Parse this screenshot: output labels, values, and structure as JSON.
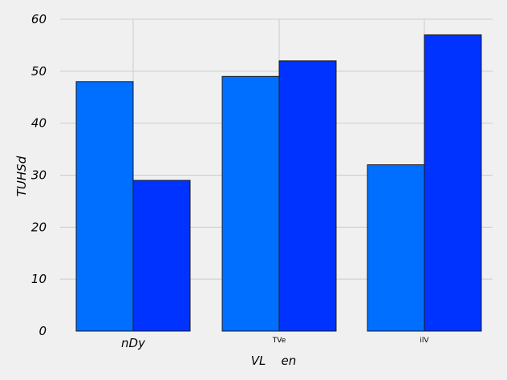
{
  "chart_data": {
    "type": "bar",
    "title": "",
    "xlabel": "VL    en",
    "ylabel": "TUHSd",
    "categories": [
      "nDy",
      "TVe",
      "ilV"
    ],
    "series": [
      {
        "values": [
          48,
          49,
          32
        ],
        "color": "#006fff"
      },
      {
        "values": [
          29,
          52,
          57
        ],
        "color": "#0033ff"
      }
    ],
    "ylim": [
      0,
      60
    ],
    "yticks": [
      0,
      10,
      20,
      30,
      40,
      50,
      60
    ],
    "grid": true,
    "legend": "none",
    "background": "#f0f0f0"
  }
}
